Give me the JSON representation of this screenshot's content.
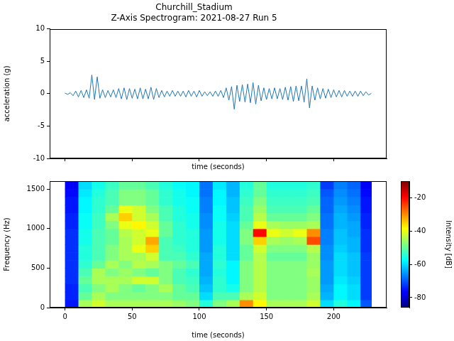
{
  "chart_data": [
    {
      "type": "line",
      "title": "Churchill_Stadium\nZ-Axis Spectrogram: 2021-08-27 Run 5",
      "x_label": "time (seconds)",
      "y_label": "acceleration (g)",
      "color": "#1f77b4",
      "x": [
        0,
        2,
        4,
        6,
        8,
        10,
        12,
        14,
        16,
        18,
        20,
        22,
        24,
        26,
        28,
        30,
        32,
        34,
        36,
        38,
        40,
        42,
        44,
        46,
        48,
        50,
        52,
        54,
        56,
        58,
        60,
        62,
        64,
        66,
        68,
        70,
        72,
        74,
        76,
        78,
        80,
        82,
        84,
        86,
        88,
        90,
        92,
        94,
        96,
        98,
        100,
        102,
        104,
        106,
        108,
        110,
        112,
        114,
        116,
        118,
        120,
        122,
        124,
        126,
        128,
        130,
        132,
        134,
        136,
        138,
        140,
        142,
        144,
        146,
        148,
        150,
        152,
        154,
        156,
        158,
        160,
        162,
        164,
        166,
        168,
        170,
        172,
        174,
        176,
        178,
        180,
        182,
        184,
        186,
        188,
        190,
        192,
        194,
        196,
        198,
        200,
        202,
        204,
        206,
        208,
        210,
        212,
        214,
        216,
        218,
        220,
        222,
        224,
        226,
        228
      ],
      "values": [
        0.1,
        -0.1,
        0.15,
        -0.3,
        0.4,
        -0.5,
        0.5,
        -0.6,
        0.6,
        -0.7,
        2.9,
        -0.9,
        2.6,
        -0.7,
        0.6,
        -0.6,
        0.5,
        -0.5,
        0.6,
        -0.6,
        0.8,
        -0.8,
        0.9,
        -0.9,
        0.8,
        -0.7,
        0.7,
        -0.8,
        0.9,
        -0.8,
        0.7,
        -0.8,
        1.0,
        -0.9,
        0.8,
        -0.6,
        0.5,
        -0.5,
        0.4,
        -0.4,
        0.5,
        -0.4,
        0.4,
        -0.4,
        0.4,
        -0.5,
        0.5,
        -0.4,
        0.4,
        -0.5,
        0.5,
        -0.4,
        0.3,
        -0.3,
        0.3,
        -0.4,
        0.4,
        -0.4,
        0.5,
        -0.6,
        0.9,
        -1.0,
        1.1,
        -2.4,
        1.3,
        -1.2,
        1.4,
        -1.3,
        1.5,
        -1.4,
        1.7,
        -1.6,
        1.3,
        -1.1,
        0.9,
        -0.9,
        0.8,
        -0.8,
        0.9,
        -0.8,
        0.8,
        -0.9,
        1.0,
        -1.0,
        1.1,
        -1.2,
        1.2,
        -1.1,
        1.2,
        -1.3,
        2.3,
        -2.2,
        1.2,
        -1.0,
        0.9,
        -0.8,
        0.8,
        -0.7,
        0.7,
        -0.6,
        0.6,
        -0.5,
        0.5,
        -0.5,
        0.5,
        -0.4,
        0.4,
        -0.4,
        0.4,
        -0.4,
        0.4,
        -0.3,
        0.3,
        -0.2,
        0.05
      ],
      "xlim": [
        -11.4,
        239.4
      ],
      "xticks": [
        0,
        50,
        100,
        150,
        200
      ],
      "ylim": [
        -10,
        10
      ],
      "yticks": [
        -10,
        -5,
        0,
        5,
        10
      ],
      "tick_labels": "y",
      "grid": false
    },
    {
      "type": "heatmap",
      "x_label": "time (seconds)",
      "y_label": "Frequency (Hz)",
      "x_edges": [
        0,
        10,
        20,
        30,
        40,
        50,
        60,
        70,
        80,
        90,
        100,
        110,
        120,
        130,
        140,
        150,
        160,
        170,
        180,
        190,
        200,
        210,
        220,
        228
      ],
      "y_edges": [
        0,
        100,
        200,
        300,
        400,
        500,
        600,
        700,
        800,
        900,
        1000,
        1100,
        1200,
        1300,
        1400,
        1500,
        1600
      ],
      "cells": [
        [
          -75,
          -45,
          -42,
          -45,
          -45,
          -45,
          -45,
          -45,
          -46,
          -48,
          -55,
          -48,
          -45,
          -30,
          -38,
          -45,
          -45,
          -45,
          -42,
          -60,
          -55,
          -58,
          -70
        ],
        [
          -74,
          -50,
          -45,
          -48,
          -48,
          -48,
          -48,
          -48,
          -50,
          -50,
          -60,
          -52,
          -52,
          -45,
          -42,
          -48,
          -48,
          -48,
          -45,
          -63,
          -58,
          -60,
          -72
        ],
        [
          -74,
          -52,
          -48,
          -45,
          -48,
          -50,
          -48,
          -45,
          -50,
          -52,
          -62,
          -54,
          -56,
          -48,
          -44,
          -48,
          -48,
          -48,
          -46,
          -64,
          -58,
          -60,
          -72
        ],
        [
          -73,
          -50,
          -45,
          -45,
          -45,
          -42,
          -42,
          -48,
          -52,
          -53,
          -63,
          -54,
          -58,
          -48,
          -44,
          -48,
          -48,
          -48,
          -46,
          -65,
          -59,
          -61,
          -72
        ],
        [
          -73,
          -52,
          -45,
          -48,
          -46,
          -48,
          -50,
          -48,
          -52,
          -54,
          -64,
          -55,
          -58,
          -48,
          -44,
          -48,
          -48,
          -48,
          -45,
          -65,
          -60,
          -62,
          -72
        ],
        [
          -73,
          -54,
          -50,
          -45,
          -48,
          -44,
          -45,
          -48,
          -50,
          -52,
          -64,
          -54,
          -58,
          -48,
          -44,
          -48,
          -48,
          -48,
          -46,
          -65,
          -60,
          -62,
          -72
        ],
        [
          -73,
          -55,
          -52,
          -48,
          -45,
          -45,
          -42,
          -52,
          -52,
          -54,
          -64,
          -55,
          -60,
          -50,
          -44,
          -50,
          -50,
          -50,
          -46,
          -66,
          -60,
          -62,
          -72
        ],
        [
          -73,
          -55,
          -52,
          -48,
          -45,
          -40,
          -35,
          -52,
          -53,
          -55,
          -65,
          -55,
          -60,
          -50,
          -42,
          -48,
          -48,
          -48,
          -44,
          -66,
          -61,
          -63,
          -73
        ],
        [
          -73,
          -56,
          -52,
          -50,
          -45,
          -42,
          -32,
          -52,
          -54,
          -55,
          -65,
          -56,
          -60,
          -48,
          -35,
          -45,
          -46,
          -45,
          -25,
          -67,
          -62,
          -63,
          -73
        ],
        [
          -73,
          -56,
          -52,
          -50,
          -44,
          -42,
          -40,
          -50,
          -54,
          -55,
          -65,
          -56,
          -60,
          -48,
          -20,
          -40,
          -42,
          -40,
          -30,
          -67,
          -62,
          -64,
          -73
        ],
        [
          -74,
          -57,
          -53,
          -48,
          -40,
          -38,
          -42,
          -50,
          -54,
          -56,
          -66,
          -56,
          -60,
          -50,
          -40,
          -45,
          -46,
          -46,
          -45,
          -68,
          -63,
          -64,
          -74
        ],
        [
          -74,
          -57,
          -53,
          -45,
          -35,
          -42,
          -45,
          -52,
          -55,
          -56,
          -66,
          -57,
          -61,
          -52,
          -44,
          -50,
          -50,
          -50,
          -48,
          -68,
          -63,
          -65,
          -74
        ],
        [
          -75,
          -58,
          -54,
          -50,
          -40,
          -42,
          -48,
          -52,
          -55,
          -57,
          -67,
          -57,
          -62,
          -52,
          -46,
          -52,
          -52,
          -52,
          -50,
          -69,
          -64,
          -66,
          -75
        ],
        [
          -75,
          -58,
          -54,
          -52,
          -48,
          -48,
          -50,
          -54,
          -56,
          -57,
          -67,
          -58,
          -62,
          -53,
          -48,
          -53,
          -53,
          -53,
          -52,
          -69,
          -65,
          -67,
          -75
        ],
        [
          -76,
          -59,
          -55,
          -52,
          -48,
          -48,
          -50,
          -54,
          -56,
          -58,
          -68,
          -58,
          -63,
          -54,
          -50,
          -54,
          -54,
          -54,
          -53,
          -70,
          -66,
          -68,
          -76
        ],
        [
          -77,
          -60,
          -56,
          -53,
          -50,
          -50,
          -52,
          -55,
          -57,
          -58,
          -68,
          -59,
          -63,
          -55,
          -50,
          -55,
          -55,
          -55,
          -54,
          -72,
          -67,
          -69,
          -77
        ]
      ],
      "xlim": [
        -11.4,
        239.4
      ],
      "xticks": [
        0,
        50,
        100,
        150,
        200
      ],
      "ylim": [
        0,
        1600
      ],
      "yticks": [
        0,
        500,
        1000,
        1500
      ],
      "grid": false,
      "colorbar": {
        "label": "Intensity [dB]",
        "range": [
          -86,
          -10
        ],
        "ticks": [
          -80,
          -60,
          -40,
          -20
        ]
      }
    }
  ]
}
